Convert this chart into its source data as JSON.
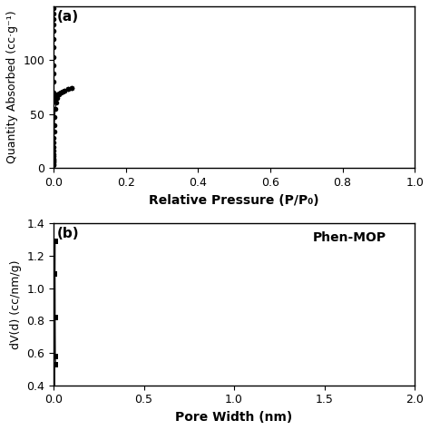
{
  "panel_a": {
    "label": "(a)",
    "xlabel": "Relative Pressure (P/P₀)",
    "ylabel": "Quantity Absorbed (cc·g⁻¹)",
    "xlim": [
      0,
      1.0
    ],
    "ylim": [
      0,
      150
    ],
    "yticks": [
      0,
      50,
      100
    ],
    "xticks": [
      0.0,
      0.2,
      0.4,
      0.6,
      0.8,
      1.0
    ],
    "ads_x": [
      5e-06,
      1e-05,
      2e-05,
      3e-05,
      5e-05,
      7e-05,
      0.0001,
      0.00015,
      0.0002,
      0.0003,
      0.0005,
      0.0007,
      0.001,
      0.0015,
      0.002,
      0.003,
      0.005,
      0.007,
      0.01,
      0.015,
      0.02,
      0.025,
      0.03,
      0.04,
      0.05
    ],
    "ads_y": [
      3,
      4,
      5,
      6,
      7,
      8,
      9,
      11,
      13,
      16,
      20,
      24,
      28,
      34,
      40,
      47,
      55,
      61,
      65,
      68,
      70,
      71,
      72,
      73,
      74
    ],
    "des_x": [
      0.05,
      0.04,
      0.03,
      0.025,
      0.02,
      0.015,
      0.01,
      0.007,
      0.005,
      0.003,
      0.002,
      0.0015,
      0.001,
      0.0007,
      0.0005,
      0.0003,
      0.0002,
      0.00015,
      0.0001,
      7e-05,
      5e-05,
      3e-05,
      2e-05,
      1e-05,
      5e-06
    ],
    "des_y": [
      74,
      73,
      72,
      71,
      70,
      69,
      68,
      67,
      66,
      65,
      64,
      63,
      62,
      70,
      80,
      88,
      95,
      103,
      112,
      120,
      127,
      133,
      138,
      143,
      148
    ]
  },
  "panel_b": {
    "label": "(b)",
    "legend": "Phen-MOP",
    "xlabel": "Pore Width (nm)",
    "ylabel": "dV(d) (cc/nm/g)",
    "xlim": [
      0,
      2.0
    ],
    "ylim": [
      0.4,
      1.4
    ],
    "yticks": [
      0.4,
      0.6,
      0.8,
      1.0,
      1.2,
      1.4
    ],
    "xticks": [
      0.0,
      0.5,
      1.0,
      1.5,
      2.0
    ],
    "pore_x": [
      0.004,
      0.005,
      0.006,
      0.007,
      0.008,
      0.009,
      0.01,
      0.012
    ],
    "pore_y": [
      0.53,
      0.58,
      0.82,
      1.09,
      1.29,
      0.82,
      0.58,
      0.53
    ]
  },
  "background_color": "#ffffff",
  "marker_color": "#000000",
  "line_color": "#000000",
  "marker_size": 4,
  "font_size": 9,
  "label_font_size": 10
}
